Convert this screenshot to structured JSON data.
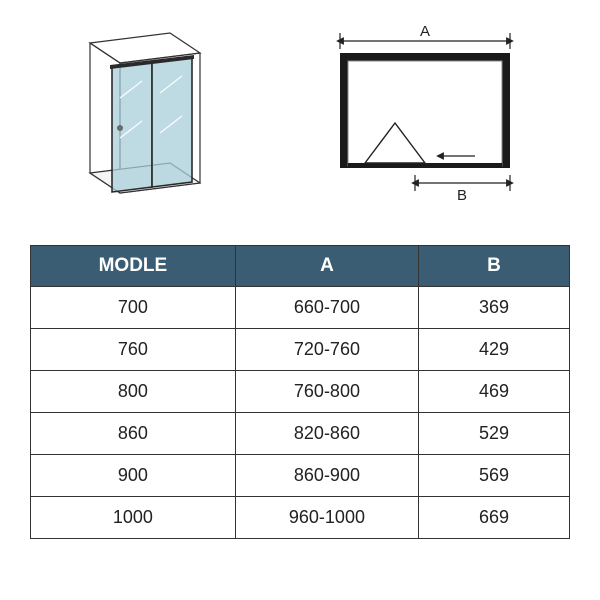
{
  "diagram": {
    "label_A": "A",
    "label_B": "B",
    "glass_color": "#a8cdd9",
    "frame_color": "#2a2a2a",
    "handle_color": "#6a6a6a"
  },
  "table": {
    "header_bg": "#3b5d73",
    "header_fg": "#ffffff",
    "border_color": "#333333",
    "cell_fg": "#222222",
    "cell_fontsize": 18,
    "columns": [
      "MODLE",
      "A",
      "B"
    ],
    "rows": [
      [
        "700",
        "660-700",
        "369"
      ],
      [
        "760",
        "720-760",
        "429"
      ],
      [
        "800",
        "760-800",
        "469"
      ],
      [
        "860",
        "820-860",
        "529"
      ],
      [
        "900",
        "860-900",
        "569"
      ],
      [
        "1000",
        "960-1000",
        "669"
      ]
    ]
  }
}
